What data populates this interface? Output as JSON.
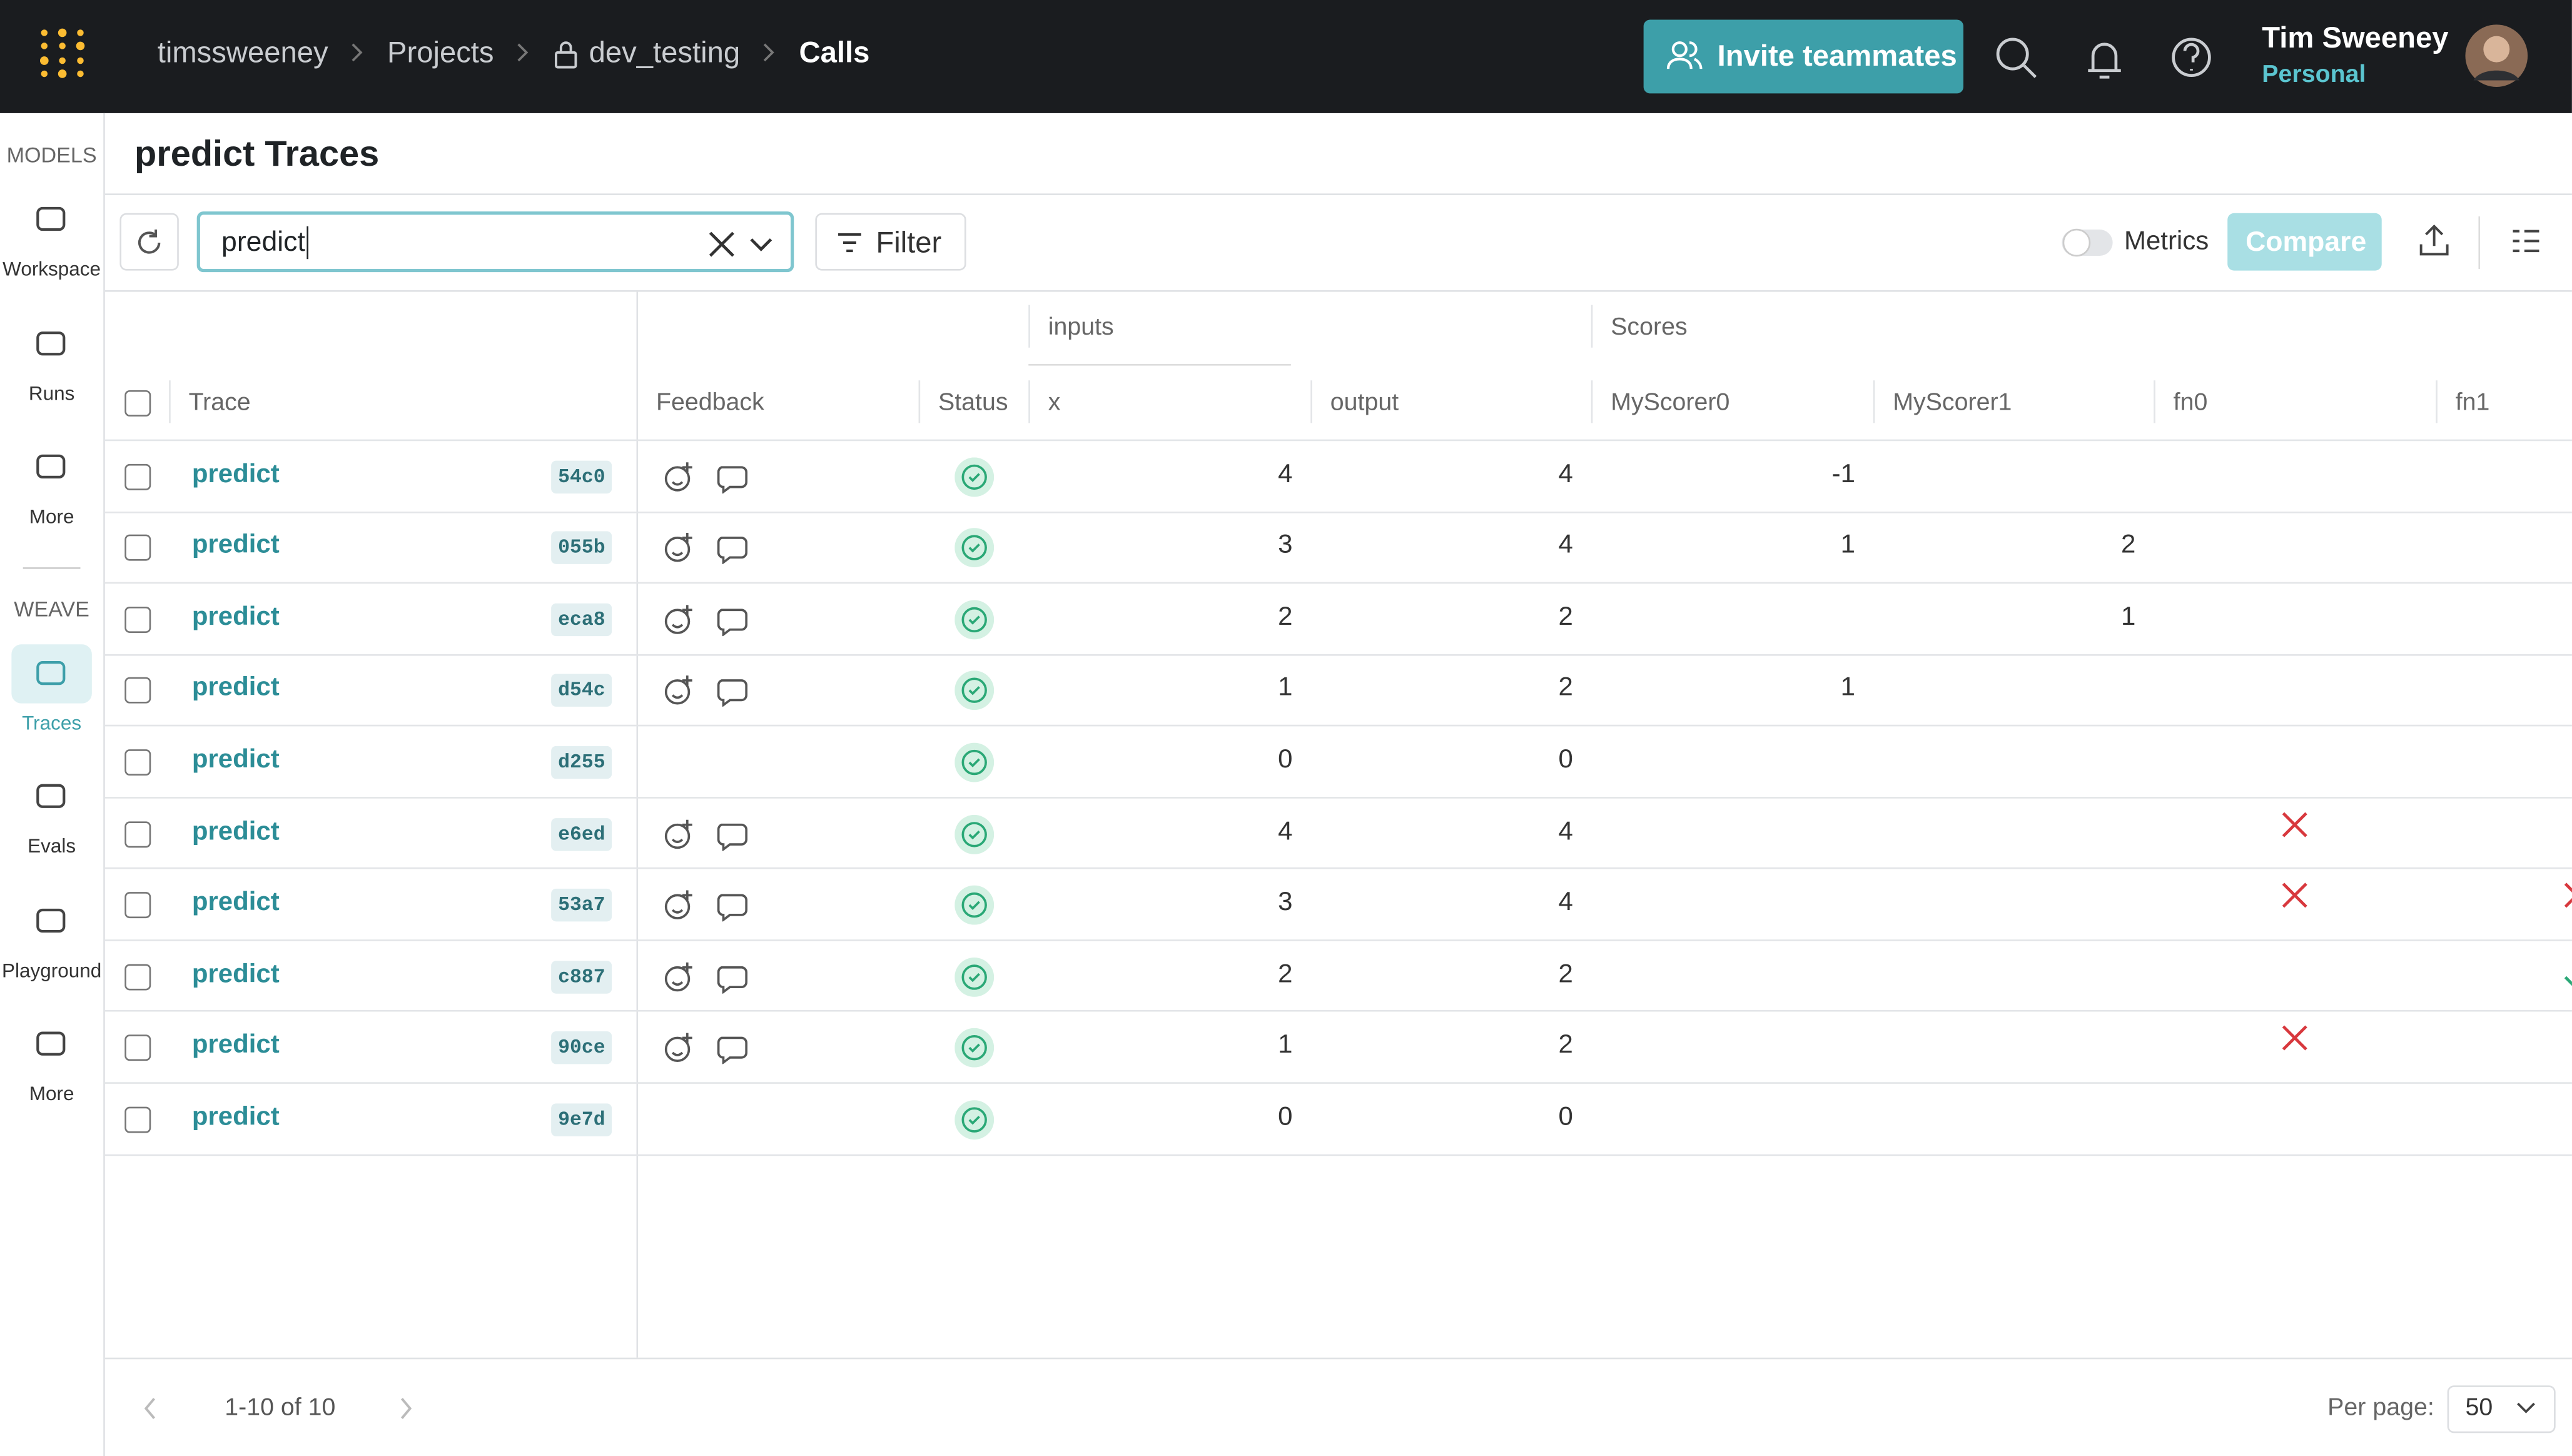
{
  "header": {
    "breadcrumbs": [
      "timssweeney",
      "Projects",
      "dev_testing",
      "Calls"
    ],
    "invite_button": "Invite teammates",
    "user_name": "Tim Sweeney",
    "account": "Personal"
  },
  "sidebar": {
    "sections": [
      {
        "label": "MODELS",
        "items": [
          "Workspace",
          "Runs",
          "More"
        ]
      },
      {
        "label": "WEAVE",
        "items": [
          "Traces",
          "Evals",
          "Playground",
          "More"
        ]
      }
    ]
  },
  "page_title": "predict Traces",
  "toolbar": {
    "search": "predict",
    "filter": "Filter",
    "metrics": "Metrics",
    "compare": "Compare"
  },
  "table": {
    "groups": [
      "inputs",
      "Scores"
    ],
    "columns": [
      "Trace",
      "Feedback",
      "Status",
      "x",
      "output",
      "MyScorer0",
      "MyScorer1",
      "fn0",
      "fn1"
    ],
    "rows": [
      {
        "op": "predict",
        "id": "54c0",
        "feedback": true,
        "x": 4,
        "output": 4,
        "MyScorer0": -1,
        "MyScorer1": null,
        "fn0": null,
        "fn1": null
      },
      {
        "op": "predict",
        "id": "055b",
        "feedback": true,
        "x": 3,
        "output": 4,
        "MyScorer0": 1,
        "MyScorer1": 2,
        "fn0": null,
        "fn1": null
      },
      {
        "op": "predict",
        "id": "eca8",
        "feedback": true,
        "x": 2,
        "output": 2,
        "MyScorer0": null,
        "MyScorer1": 1,
        "fn0": null,
        "fn1": null
      },
      {
        "op": "predict",
        "id": "d54c",
        "feedback": true,
        "x": 1,
        "output": 2,
        "MyScorer0": 1,
        "MyScorer1": null,
        "fn0": null,
        "fn1": null
      },
      {
        "op": "predict",
        "id": "d255",
        "feedback": false,
        "x": 0,
        "output": 0,
        "MyScorer0": null,
        "MyScorer1": null,
        "fn0": null,
        "fn1": null
      },
      {
        "op": "predict",
        "id": "e6ed",
        "feedback": true,
        "x": 4,
        "output": 4,
        "MyScorer0": null,
        "MyScorer1": null,
        "fn0": false,
        "fn1": null
      },
      {
        "op": "predict",
        "id": "53a7",
        "feedback": true,
        "x": 3,
        "output": 4,
        "MyScorer0": null,
        "MyScorer1": null,
        "fn0": false,
        "fn1": false
      },
      {
        "op": "predict",
        "id": "c887",
        "feedback": true,
        "x": 2,
        "output": 2,
        "MyScorer0": null,
        "MyScorer1": null,
        "fn0": null,
        "fn1": true
      },
      {
        "op": "predict",
        "id": "90ce",
        "feedback": true,
        "x": 1,
        "output": 2,
        "MyScorer0": null,
        "MyScorer1": null,
        "fn0": false,
        "fn1": null
      },
      {
        "op": "predict",
        "id": "9e7d",
        "feedback": false,
        "x": 0,
        "output": 0,
        "MyScorer0": null,
        "MyScorer1": null,
        "fn0": null,
        "fn1": null
      }
    ]
  },
  "footer": {
    "range": "1-10 of 10",
    "per_page_label": "Per page:",
    "per_page": 50
  }
}
